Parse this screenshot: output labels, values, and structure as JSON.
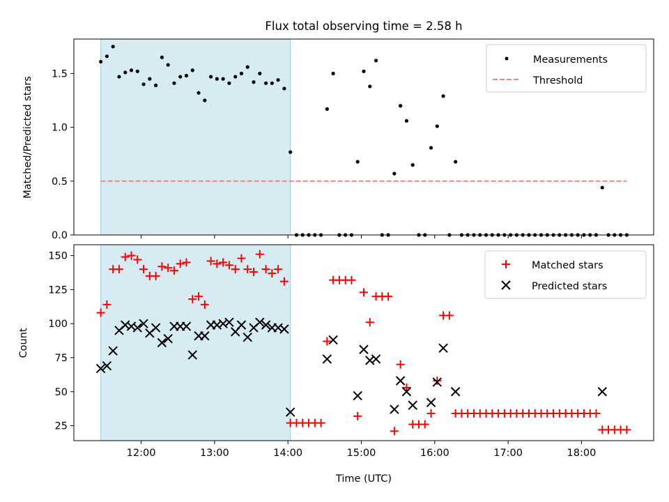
{
  "title": "Flux total observing time = 2.58 h",
  "xlabel": "Time (UTC)",
  "shade_color": "#add8e6",
  "chart_data": [
    {
      "type": "scatter",
      "panel": "top",
      "title": "Flux total observing time = 2.58 h",
      "ylabel": "Matched/Predicted stars",
      "xlim": [
        "11:05",
        "18:59"
      ],
      "ylim": [
        0,
        1.82
      ],
      "y_ticks": [
        0.0,
        0.5,
        1.0,
        1.5
      ],
      "y_tick_labels": [
        "0.0",
        "0.5",
        "1.0",
        "1.5"
      ],
      "shaded_region": {
        "x_start": "11:27",
        "x_end": "14:02"
      },
      "legend": {
        "position": "upper right",
        "entries": [
          "Measurements",
          "Threshold"
        ]
      },
      "series": [
        {
          "name": "Measurements",
          "marker": "dot",
          "color": "#000000",
          "points": [
            [
              "11:27",
              1.61
            ],
            [
              "11:32",
              1.66
            ],
            [
              "11:37",
              1.75
            ],
            [
              "11:42",
              1.47
            ],
            [
              "11:47",
              1.51
            ],
            [
              "11:52",
              1.53
            ],
            [
              "11:57",
              1.52
            ],
            [
              "12:02",
              1.4
            ],
            [
              "12:07",
              1.45
            ],
            [
              "12:12",
              1.39
            ],
            [
              "12:17",
              1.65
            ],
            [
              "12:22",
              1.58
            ],
            [
              "12:27",
              1.41
            ],
            [
              "12:32",
              1.47
            ],
            [
              "12:37",
              1.48
            ],
            [
              "12:42",
              1.53
            ],
            [
              "12:47",
              1.32
            ],
            [
              "12:52",
              1.25
            ],
            [
              "12:57",
              1.47
            ],
            [
              "13:02",
              1.45
            ],
            [
              "13:07",
              1.45
            ],
            [
              "13:12",
              1.41
            ],
            [
              "13:17",
              1.47
            ],
            [
              "13:22",
              1.5
            ],
            [
              "13:27",
              1.56
            ],
            [
              "13:32",
              1.42
            ],
            [
              "13:37",
              1.5
            ],
            [
              "13:42",
              1.41
            ],
            [
              "13:47",
              1.41
            ],
            [
              "13:52",
              1.44
            ],
            [
              "13:57",
              1.36
            ],
            [
              "14:02",
              0.77
            ],
            [
              "14:07",
              0
            ],
            [
              "14:12",
              0
            ],
            [
              "14:17",
              0
            ],
            [
              "14:22",
              0
            ],
            [
              "14:27",
              0
            ],
            [
              "14:32",
              1.17
            ],
            [
              "14:37",
              1.5
            ],
            [
              "14:42",
              0
            ],
            [
              "14:47",
              0
            ],
            [
              "14:52",
              0
            ],
            [
              "14:57",
              0.68
            ],
            [
              "15:02",
              1.52
            ],
            [
              "15:07",
              1.38
            ],
            [
              "15:12",
              1.62
            ],
            [
              "15:17",
              0
            ],
            [
              "15:22",
              0
            ],
            [
              "15:27",
              0.57
            ],
            [
              "15:32",
              1.2
            ],
            [
              "15:37",
              1.06
            ],
            [
              "15:42",
              0.65
            ],
            [
              "15:47",
              0
            ],
            [
              "15:52",
              0
            ],
            [
              "15:57",
              0.81
            ],
            [
              "16:02",
              1.01
            ],
            [
              "16:07",
              1.29
            ],
            [
              "16:12",
              0
            ],
            [
              "16:17",
              0.68
            ],
            [
              "16:22",
              0
            ],
            [
              "16:27",
              0
            ],
            [
              "16:32",
              0
            ],
            [
              "16:37",
              0
            ],
            [
              "16:42",
              0
            ],
            [
              "16:47",
              0
            ],
            [
              "16:52",
              0
            ],
            [
              "16:57",
              0
            ],
            [
              "17:02",
              0
            ],
            [
              "17:07",
              0
            ],
            [
              "17:12",
              0
            ],
            [
              "17:17",
              0
            ],
            [
              "17:22",
              0
            ],
            [
              "17:27",
              0
            ],
            [
              "17:32",
              0
            ],
            [
              "17:37",
              0
            ],
            [
              "17:42",
              0
            ],
            [
              "17:47",
              0
            ],
            [
              "17:52",
              0
            ],
            [
              "17:57",
              0
            ],
            [
              "18:02",
              0
            ],
            [
              "18:07",
              0
            ],
            [
              "18:12",
              0
            ],
            [
              "18:17",
              0.44
            ],
            [
              "18:22",
              0
            ],
            [
              "18:27",
              0
            ],
            [
              "18:32",
              0
            ],
            [
              "18:37",
              0
            ]
          ]
        },
        {
          "name": "Threshold",
          "marker": "dashed-line",
          "color": "#ff7f7f",
          "points": [
            [
              "11:27",
              0.5
            ],
            [
              "18:37",
              0.5
            ]
          ]
        }
      ]
    },
    {
      "type": "scatter",
      "panel": "bottom",
      "xlabel": "Time (UTC)",
      "ylabel": "Count",
      "xlim": [
        "11:05",
        "18:59"
      ],
      "ylim": [
        14,
        158
      ],
      "x_ticks": [
        "12:00",
        "13:00",
        "14:00",
        "15:00",
        "16:00",
        "17:00",
        "18:00"
      ],
      "y_ticks": [
        25,
        50,
        75,
        100,
        125,
        150
      ],
      "y_tick_labels": [
        "25",
        "50",
        "75",
        "100",
        "125",
        "150"
      ],
      "shaded_region": {
        "x_start": "11:27",
        "x_end": "14:02"
      },
      "legend": {
        "position": "upper right",
        "entries": [
          "Matched stars",
          "Predicted stars"
        ]
      },
      "series": [
        {
          "name": "Matched stars",
          "marker": "plus",
          "color": "#ff0000",
          "points": [
            [
              "11:27",
              108
            ],
            [
              "11:32",
              114
            ],
            [
              "11:37",
              140
            ],
            [
              "11:42",
              140
            ],
            [
              "11:47",
              149
            ],
            [
              "11:52",
              150
            ],
            [
              "11:57",
              147
            ],
            [
              "12:02",
              140
            ],
            [
              "12:07",
              135
            ],
            [
              "12:12",
              135
            ],
            [
              "12:17",
              142
            ],
            [
              "12:22",
              141
            ],
            [
              "12:27",
              139
            ],
            [
              "12:32",
              144
            ],
            [
              "12:37",
              145
            ],
            [
              "12:42",
              118
            ],
            [
              "12:47",
              120
            ],
            [
              "12:52",
              114
            ],
            [
              "12:57",
              146
            ],
            [
              "13:02",
              144
            ],
            [
              "13:07",
              145
            ],
            [
              "13:12",
              143
            ],
            [
              "13:17",
              140
            ],
            [
              "13:22",
              148
            ],
            [
              "13:27",
              140
            ],
            [
              "13:32",
              138
            ],
            [
              "13:37",
              151
            ],
            [
              "13:42",
              140
            ],
            [
              "13:47",
              137
            ],
            [
              "13:52",
              140
            ],
            [
              "13:57",
              131
            ],
            [
              "14:02",
              27
            ],
            [
              "14:07",
              27
            ],
            [
              "14:12",
              27
            ],
            [
              "14:17",
              27
            ],
            [
              "14:22",
              27
            ],
            [
              "14:27",
              27
            ],
            [
              "14:32",
              87
            ],
            [
              "14:37",
              132
            ],
            [
              "14:42",
              132
            ],
            [
              "14:47",
              132
            ],
            [
              "14:52",
              132
            ],
            [
              "14:57",
              32
            ],
            [
              "15:02",
              123
            ],
            [
              "15:07",
              101
            ],
            [
              "15:12",
              120
            ],
            [
              "15:17",
              120
            ],
            [
              "15:22",
              120
            ],
            [
              "15:27",
              21
            ],
            [
              "15:32",
              70
            ],
            [
              "15:37",
              53
            ],
            [
              "15:42",
              26
            ],
            [
              "15:47",
              26
            ],
            [
              "15:52",
              26
            ],
            [
              "15:57",
              34
            ],
            [
              "16:02",
              58
            ],
            [
              "16:07",
              106
            ],
            [
              "16:12",
              106
            ],
            [
              "16:17",
              34
            ],
            [
              "16:22",
              34
            ],
            [
              "16:27",
              34
            ],
            [
              "16:32",
              34
            ],
            [
              "16:37",
              34
            ],
            [
              "16:42",
              34
            ],
            [
              "16:47",
              34
            ],
            [
              "16:52",
              34
            ],
            [
              "16:57",
              34
            ],
            [
              "17:02",
              34
            ],
            [
              "17:07",
              34
            ],
            [
              "17:12",
              34
            ],
            [
              "17:17",
              34
            ],
            [
              "17:22",
              34
            ],
            [
              "17:27",
              34
            ],
            [
              "17:32",
              34
            ],
            [
              "17:37",
              34
            ],
            [
              "17:42",
              34
            ],
            [
              "17:47",
              34
            ],
            [
              "17:52",
              34
            ],
            [
              "17:57",
              34
            ],
            [
              "18:02",
              34
            ],
            [
              "18:07",
              34
            ],
            [
              "18:12",
              34
            ],
            [
              "18:17",
              22
            ],
            [
              "18:22",
              22
            ],
            [
              "18:27",
              22
            ],
            [
              "18:32",
              22
            ],
            [
              "18:37",
              22
            ]
          ]
        },
        {
          "name": "Predicted stars",
          "marker": "x",
          "color": "#000000",
          "points": [
            [
              "11:27",
              67
            ],
            [
              "11:32",
              69
            ],
            [
              "11:37",
              80
            ],
            [
              "11:42",
              95
            ],
            [
              "11:47",
              99
            ],
            [
              "11:52",
              98
            ],
            [
              "11:57",
              97
            ],
            [
              "12:02",
              100
            ],
            [
              "12:07",
              93
            ],
            [
              "12:12",
              97
            ],
            [
              "12:17",
              86
            ],
            [
              "12:22",
              89
            ],
            [
              "12:27",
              98
            ],
            [
              "12:32",
              98
            ],
            [
              "12:37",
              98
            ],
            [
              "12:42",
              77
            ],
            [
              "12:47",
              91
            ],
            [
              "12:52",
              91
            ],
            [
              "12:57",
              99
            ],
            [
              "13:02",
              99
            ],
            [
              "13:07",
              100
            ],
            [
              "13:12",
              101
            ],
            [
              "13:17",
              94
            ],
            [
              "13:22",
              99
            ],
            [
              "13:27",
              90
            ],
            [
              "13:32",
              97
            ],
            [
              "13:37",
              101
            ],
            [
              "13:42",
              99
            ],
            [
              "13:47",
              97
            ],
            [
              "13:52",
              97
            ],
            [
              "13:57",
              96
            ],
            [
              "14:02",
              35
            ],
            [
              "14:32",
              74
            ],
            [
              "14:37",
              88
            ],
            [
              "14:57",
              47
            ],
            [
              "15:02",
              81
            ],
            [
              "15:07",
              73
            ],
            [
              "15:12",
              74
            ],
            [
              "15:27",
              37
            ],
            [
              "15:32",
              58
            ],
            [
              "15:37",
              50
            ],
            [
              "15:42",
              40
            ],
            [
              "15:57",
              42
            ],
            [
              "16:02",
              57
            ],
            [
              "16:07",
              82
            ],
            [
              "16:17",
              50
            ],
            [
              "18:17",
              50
            ]
          ]
        }
      ]
    }
  ]
}
